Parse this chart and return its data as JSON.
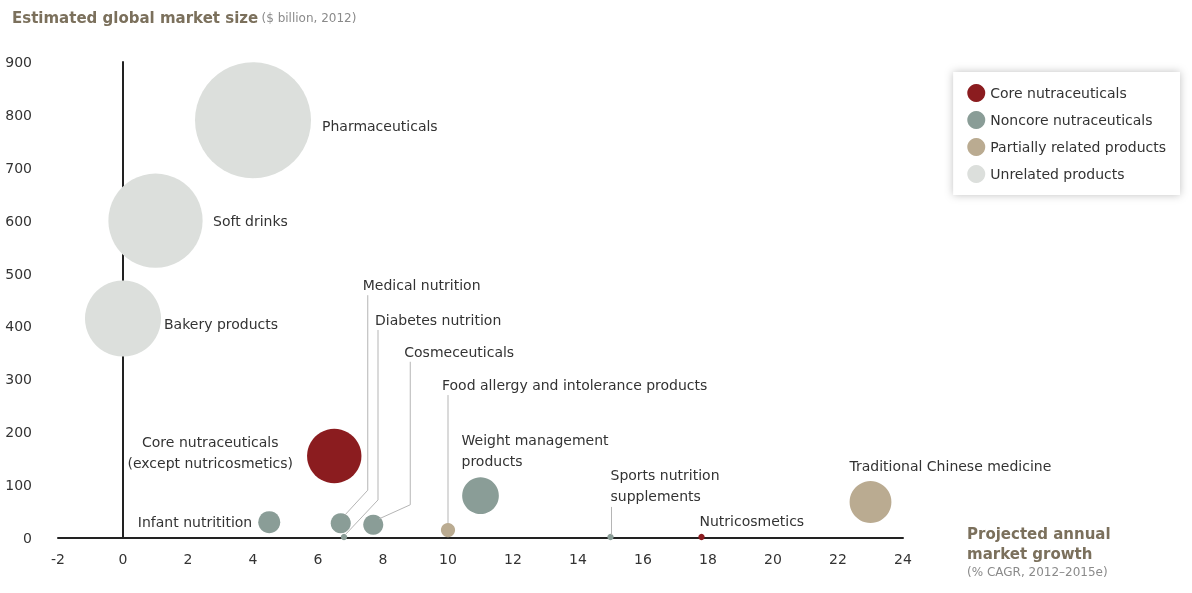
{
  "chart_data": {
    "type": "bubble",
    "ylabel": "Estimated global market size ($ billion, 2012)",
    "xlabel": "Projected annual market growth (% CAGR, 2012–2015e)",
    "xlim": [
      -2,
      24
    ],
    "xticks": [
      -2,
      0,
      2,
      4,
      6,
      8,
      10,
      12,
      14,
      16,
      18,
      20,
      22,
      24
    ],
    "ylim": [
      0,
      900
    ],
    "yticks": [
      0,
      100,
      200,
      300,
      400,
      500,
      600,
      700,
      800,
      900
    ],
    "legend": "top right",
    "marker": "circle",
    "series": [
      {
        "name": "Core nutraceuticals",
        "color": "#8b1c1f",
        "x": [
          6.5,
          17.8
        ],
        "values": [
          155,
          2
        ],
        "sizes": [
          0.22,
          0.003
        ]
      },
      {
        "name": "Noncore nutraceuticals",
        "color": "#8a9d97",
        "x": [
          4.5,
          6.7,
          6.8,
          7.7,
          11,
          15
        ],
        "values": [
          30,
          28,
          2,
          25,
          80,
          2
        ],
        "sizes": [
          0.036,
          0.03,
          0.003,
          0.03,
          0.1,
          0.003
        ]
      },
      {
        "name": "Partially related products",
        "color": "#baab91",
        "x": [
          10,
          23
        ],
        "values": [
          15,
          68
        ],
        "sizes": [
          0.015,
          0.13
        ]
      },
      {
        "name": "Unrelated products",
        "color": "#dcdfdc",
        "x": [
          4,
          1,
          0
        ],
        "values": [
          790,
          600,
          415
        ],
        "sizes": [
          1,
          0.66,
          0.43
        ]
      }
    ],
    "annotations": [
      "Pharmaceuticals",
      "Soft drinks",
      {
        "text": "Bakery products",
        "x": 0,
        "y": 415
      },
      {
        "text": "Core nutraceuticals\n(except nutricosmetics)",
        "x": 6.5,
        "y": 155
      },
      {
        "text": "Infant nutritition",
        "x": 4.5,
        "y": 30
      },
      {
        "text": "Medical nutrition",
        "x": 6.7,
        "y": 28
      },
      {
        "text": "Diabetes nutrition",
        "x": 6.8,
        "y": 2
      },
      {
        "text": "Cosmeceuticals",
        "x": 7.7,
        "y": 25
      },
      {
        "text": "Food allergy and intolerance products",
        "x": 10,
        "y": 15
      },
      {
        "text": "Weight management\nproducts",
        "x": 11,
        "y": 80
      },
      {
        "text": "Sports nutrition\nsupplements",
        "x": 15,
        "y": 2
      },
      {
        "text": "Nutricosmetics",
        "x": 17.8,
        "y": 2
      },
      {
        "text": "Traditional Chinese medicine",
        "x": 23,
        "y": 68
      }
    ]
  }
}
